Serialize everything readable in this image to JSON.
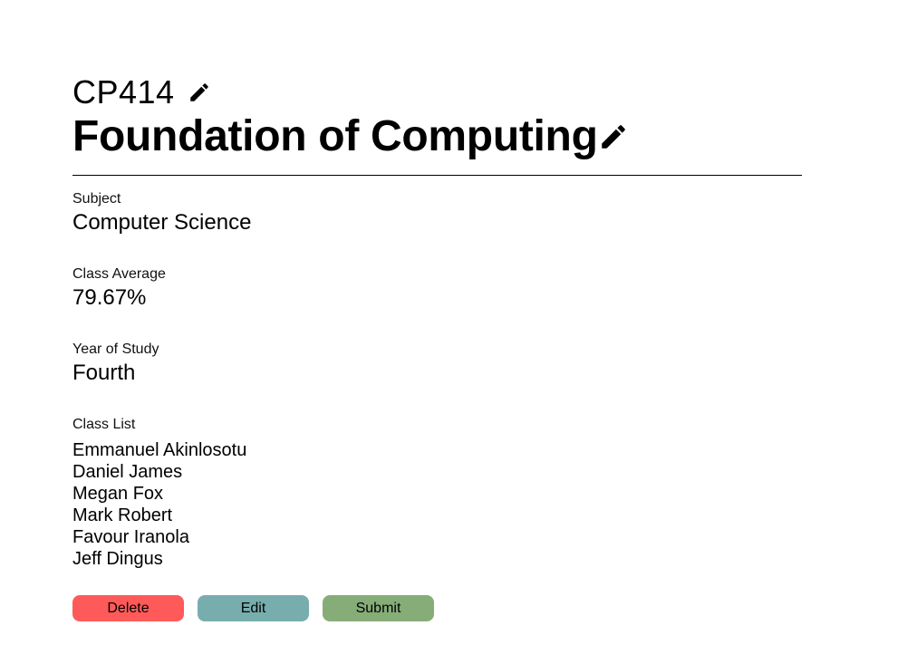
{
  "course": {
    "code": "CP414",
    "title": "Foundation of Computing"
  },
  "fields": {
    "subject": {
      "label": "Subject",
      "value": "Computer Science"
    },
    "average": {
      "label": "Class Average",
      "value": "79.67%"
    },
    "year": {
      "label": "Year of Study",
      "value": "Fourth"
    }
  },
  "class_list": {
    "label": "Class List",
    "students": [
      "Emmanuel Akinlosotu",
      "Daniel James",
      "Megan Fox",
      "Mark Robert",
      "Favour Iranola",
      "Jeff Dingus"
    ]
  },
  "actions": {
    "delete_label": "Delete",
    "edit_label": "Edit",
    "submit_label": "Submit"
  },
  "colors": {
    "delete": "#ff5a5a",
    "edit": "#78adae",
    "submit": "#86ad78"
  },
  "icons": {
    "code_edit": "pencil-icon",
    "title_edit": "pencil-icon"
  }
}
